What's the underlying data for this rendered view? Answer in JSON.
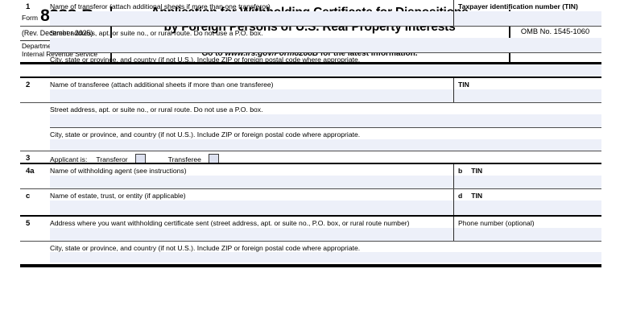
{
  "form": {
    "form_word": "Form",
    "form_number": "8288-B",
    "revision": "(Rev. December 2025)",
    "agency_line1": "Department of the Treasury",
    "agency_line2": "Internal Revenue Service",
    "title_line1": "Application for Withholding Certificate for Dispositions",
    "title_line2": "by Foreign Persons of U.S. Real Property Interests",
    "goto_prefix": "Go to ",
    "goto_url": "www.irs.gov/Form8288B",
    "goto_suffix": " for the latest information.",
    "omb": "OMB No. 1545-1060"
  },
  "colors": {
    "input_fill": "#edf0f9",
    "checkbox_fill": "#dde1f0",
    "line_dark": "#000000",
    "line_gray": "#4d4d4d"
  },
  "rows": {
    "r1": {
      "num": "1",
      "label": "Name of transferor (attach additional sheets if more than one transferor)",
      "tin_label": "Taxpayer identification number (TIN)",
      "street": "Street address, apt. or suite no., or rural route. Do not use a P.O. box.",
      "city": "City, state or province, and country (if not U.S.). Include ZIP or foreign postal code where appropriate."
    },
    "r2": {
      "num": "2",
      "label": "Name of transferee (attach additional sheets if more than one transferee)",
      "tin_label": "TIN",
      "street": "Street address, apt. or suite no., or rural route. Do not use a P.O. box.",
      "city": "City, state or province, and country (if not U.S.). Include ZIP or foreign postal code where appropriate."
    },
    "r3": {
      "num": "3",
      "label": "Applicant is:",
      "option1": "Transferor",
      "option2": "Transferee"
    },
    "r4a": {
      "num": "4a",
      "label": "Name of withholding agent (see instructions)",
      "tin_letter": "b",
      "tin_label": "TIN"
    },
    "rc": {
      "num": "c",
      "label": "Name of estate, trust, or entity (if applicable)",
      "tin_letter": "d",
      "tin_label": "TIN"
    },
    "r5": {
      "num": "5",
      "label": "Address where you want withholding certificate sent (street address, apt. or suite no., P.O. box, or rural route number)",
      "right_label": "Phone number (optional)",
      "city": "City, state or province, and country (if not U.S.). Include ZIP or foreign postal code where appropriate."
    }
  }
}
